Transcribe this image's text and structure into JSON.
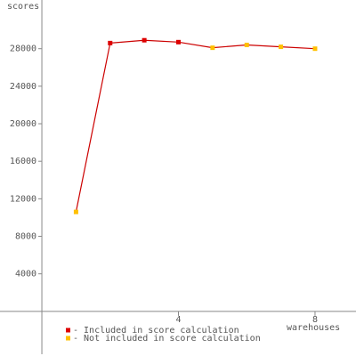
{
  "chart_data": {
    "type": "line",
    "y_label": "scores",
    "x_label": "warehouses",
    "x": [
      1,
      2,
      3,
      4,
      5,
      6,
      7,
      8
    ],
    "values": [
      10600,
      28600,
      28900,
      28700,
      28100,
      28400,
      28200,
      28000
    ],
    "line_color": "#cc0000",
    "included": [
      false,
      true,
      true,
      true,
      false,
      false,
      false,
      false
    ],
    "legend": [
      {
        "label": "- Included in score calculation",
        "color": "#dd0000"
      },
      {
        "label": "- Not included in score calculation",
        "color": "#ffc000"
      }
    ],
    "xlim": [
      -1.2,
      9.2
    ],
    "xticks": [
      4,
      8
    ],
    "ylim": [
      -4000,
      33000
    ],
    "yticks": [
      4000,
      8000,
      12000,
      16000,
      20000,
      24000,
      28000
    ]
  }
}
